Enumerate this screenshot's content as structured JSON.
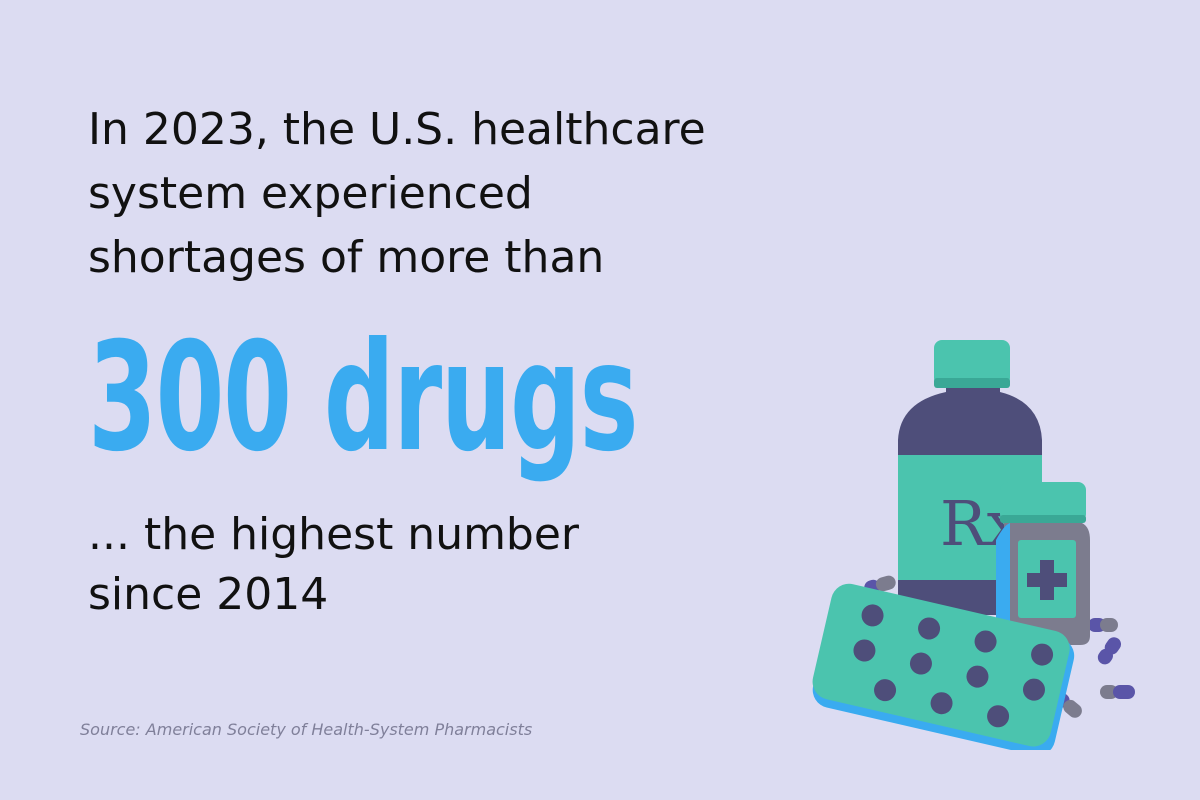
{
  "intro_lines": [
    "In 2023, the U.S. healthcare",
    "system experienced",
    "shortages of more than"
  ],
  "headline": "300 drugs",
  "outro_lines": [
    "... the highest number",
    "since 2014"
  ],
  "source": "Source: American Society of Health-System Pharmacists",
  "illustration": {
    "icons": [
      "medicine-bottle-icon",
      "pill-bottle-icon",
      "blister-pack-icon",
      "capsule-icon"
    ],
    "bottle_label": "Rx"
  },
  "colors": {
    "background": "#dcdcf2",
    "headline": "#3aabf0",
    "text": "#111111",
    "source": "#80809a",
    "teal": "#4bc4ae",
    "navy": "#4e4e7a",
    "gray": "#7c7c8e",
    "light_blue": "#3aabf0",
    "purple": "#5a55a8"
  }
}
